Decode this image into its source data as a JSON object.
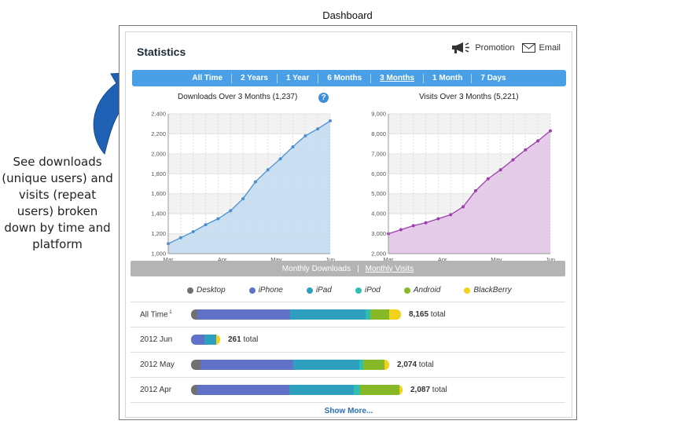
{
  "page_title": "Dashboard",
  "side_note": "See downloads (unique users) and visits (repeat users) broken down by time and platform",
  "panel": {
    "title": "Statistics",
    "actions": {
      "promotion": "Promotion",
      "email": "Email"
    },
    "time_tabs": [
      "All Time",
      "2 Years",
      "1 Year",
      "6 Months",
      "3 Months",
      "1 Month",
      "7 Days"
    ],
    "active_time_tab": "3 Months",
    "view_tabs": [
      "Monthly Downloads",
      "Monthly Visits"
    ],
    "active_view_tab": "Monthly Visits",
    "legend": [
      {
        "name": "Desktop",
        "color": "#707070"
      },
      {
        "name": "iPhone",
        "color": "#5f72c8"
      },
      {
        "name": "iPad",
        "color": "#2e9fbf"
      },
      {
        "name": "iPod",
        "color": "#2fbfae"
      },
      {
        "name": "Android",
        "color": "#86b828"
      },
      {
        "name": "BlackBerry",
        "color": "#f2d21b"
      }
    ],
    "rows": [
      {
        "label": "All Time",
        "superscript": "1",
        "segments": [
          8,
          118,
          96,
          6,
          24,
          15
        ],
        "total": "8,165",
        "total_word": "total"
      },
      {
        "label": "2012 Jun",
        "segments": [
          0,
          17,
          15,
          0,
          0,
          5
        ],
        "total": "261",
        "total_word": "total"
      },
      {
        "label": "2012 May",
        "segments": [
          12,
          118,
          84,
          5,
          27,
          6
        ],
        "total": "2,074",
        "total_word": "total"
      },
      {
        "label": "2012 Apr",
        "segments": [
          8,
          117,
          82,
          8,
          50,
          4
        ],
        "total": "2,087",
        "total_word": "total"
      }
    ],
    "show_more": "Show More..."
  },
  "chart_data": [
    {
      "type": "area",
      "title": "Downloads Over 3 Months (1,237)",
      "color": "#4a90d0",
      "fill": "#c4dcef",
      "ylim": [
        1000,
        2400
      ],
      "y_ticks": [
        "1,000",
        "1,200",
        "1,400",
        "1,600",
        "1,800",
        "2,000",
        "2,200",
        "2,400"
      ],
      "x_ticks": [
        "Mar",
        "Apr",
        "May",
        "Jun"
      ],
      "values": [
        1100,
        1160,
        1220,
        1290,
        1350,
        1430,
        1550,
        1720,
        1840,
        1950,
        2070,
        2180,
        2250,
        2330
      ]
    },
    {
      "type": "area",
      "title": "Visits Over 3 Months (5,221)",
      "color": "#9b3fab",
      "fill": "#e2c6e6",
      "ylim": [
        2000,
        9000
      ],
      "y_ticks": [
        "2,000",
        "3,000",
        "4,000",
        "5,000",
        "6,000",
        "7,000",
        "8,000",
        "9,000"
      ],
      "x_ticks": [
        "Mar",
        "Apr",
        "May",
        "Jun"
      ],
      "values": [
        3000,
        3200,
        3400,
        3550,
        3750,
        3950,
        4350,
        5150,
        5750,
        6200,
        6700,
        7200,
        7650,
        8150
      ]
    }
  ]
}
